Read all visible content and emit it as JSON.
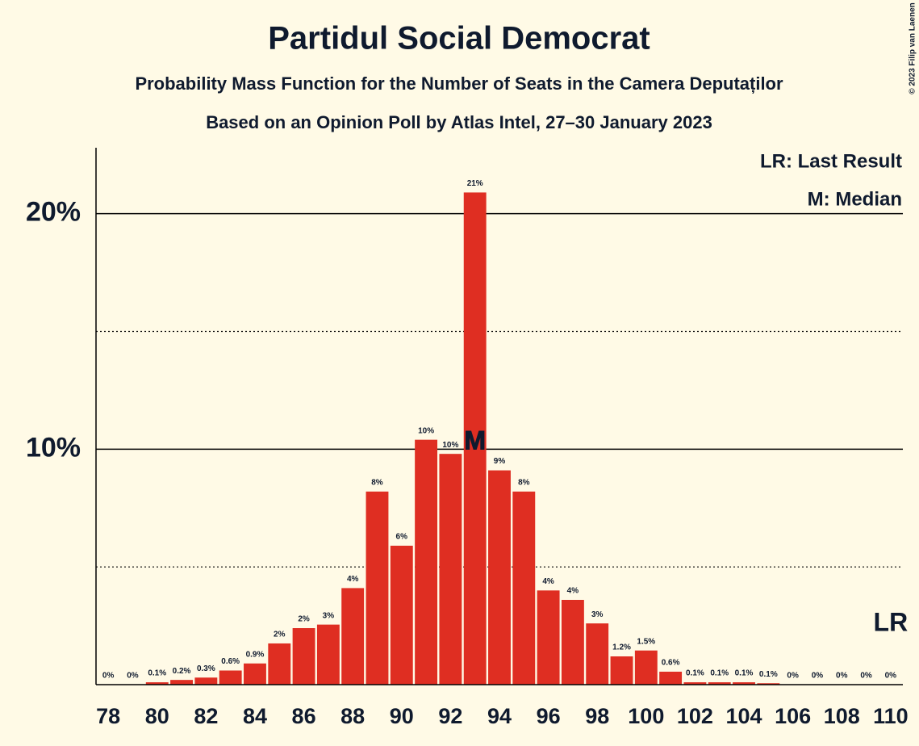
{
  "chart_data": {
    "type": "bar",
    "title": "Partidul Social Democrat",
    "subtitle": "Probability Mass Function for the Number of Seats in the Camera Deputaților",
    "subtitle2": "Based on an Opinion Poll by Atlas Intel, 27–30 January 2023",
    "copyright": "© 2023 Filip van Laenen",
    "legend": [
      "LR: Last Result",
      "M: Median"
    ],
    "annotations": [
      {
        "text": "M",
        "x": 93
      },
      {
        "text": "LR",
        "x": 110
      }
    ],
    "color": "#df2e22",
    "categories": [
      78,
      null,
      80,
      null,
      82,
      null,
      84,
      null,
      86,
      null,
      88,
      null,
      90,
      null,
      92,
      null,
      94,
      null,
      96,
      null,
      98,
      null,
      100,
      null,
      102,
      null,
      104,
      null,
      106,
      null,
      108,
      null,
      110
    ],
    "values": [
      0,
      0,
      0.1,
      0.2,
      0.3,
      0.6,
      0.9,
      1.75,
      2.4,
      2.55,
      4.1,
      8.2,
      5.9,
      10.4,
      9.8,
      20.9,
      9.1,
      8.2,
      4.0,
      3.6,
      2.6,
      1.2,
      1.45,
      0.55,
      0.1,
      0.1,
      0.1,
      0.06,
      0,
      0,
      0,
      0,
      0
    ],
    "value_labels": [
      "0%",
      "0%",
      "0.1%",
      "0.2%",
      "0.3%",
      "0.6%",
      "0.9%",
      "2%",
      "2%",
      "3%",
      "4%",
      "8%",
      "6%",
      "10%",
      "10%",
      "21%",
      "9%",
      "8%",
      "4%",
      "4%",
      "3%",
      "1.2%",
      "1.5%",
      "0.6%",
      "0.1%",
      "0.1%",
      "0.1%",
      "0.1%",
      "0%",
      "0%",
      "0%",
      "0%",
      "0%"
    ],
    "ylim": [
      0,
      22.8
    ],
    "yticks": [
      {
        "value": 10,
        "label": "10%"
      },
      {
        "value": 20,
        "label": "20%"
      }
    ],
    "minor_grid": [
      5,
      15
    ]
  }
}
